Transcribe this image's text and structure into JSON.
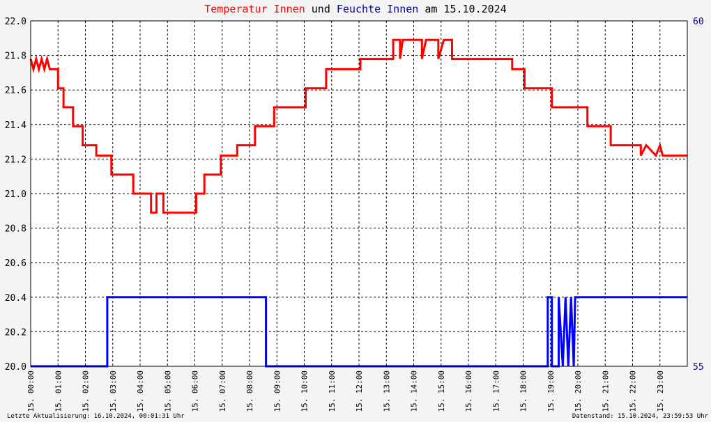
{
  "title": {
    "part1": "Temperatur Innen",
    "part2": " und ",
    "part3": "Feuchte Innen",
    "part4": " am 15.10.2024"
  },
  "footer": {
    "left": "Letzte Aktualisierung: 16.10.2024, 00:01:31 Uhr",
    "right": "Datenstand: 15.10.2024, 23:59:53 Uhr"
  },
  "colors": {
    "temperature": "#ff0000",
    "humidity": "#0000ff",
    "grid": "#000000",
    "plot_background": "#ffffff",
    "outer_background": "#f4f4f4",
    "right_axis_text": "#0000b0"
  },
  "chart_data": {
    "type": "line",
    "grid": true,
    "x_range_hours": [
      0,
      24
    ],
    "x_tick_labels": [
      "15. 00:00",
      "15. 01:00",
      "15. 02:00",
      "15. 03:00",
      "15. 04:00",
      "15. 05:00",
      "15. 06:00",
      "15. 07:00",
      "15. 08:00",
      "15. 09:00",
      "15. 10:00",
      "15. 11:00",
      "15. 12:00",
      "15. 13:00",
      "15. 14:00",
      "15. 15:00",
      "15. 16:00",
      "15. 17:00",
      "15. 18:00",
      "15. 19:00",
      "15. 20:00",
      "15. 21:00",
      "15. 22:00",
      "15. 23:00"
    ],
    "y_left": {
      "range": [
        20.0,
        22.0
      ],
      "ticks": [
        "20.0",
        "20.2",
        "20.4",
        "20.6",
        "20.8",
        "21.0",
        "21.2",
        "21.4",
        "21.6",
        "21.8",
        "22.0"
      ]
    },
    "y_right": {
      "range": [
        55,
        60
      ],
      "ticks": [
        "55",
        "60"
      ]
    },
    "series": [
      {
        "name": "Temperatur Innen",
        "axis": "left",
        "color": "#ff0000",
        "points": [
          [
            0.0,
            21.78
          ],
          [
            0.1,
            21.72
          ],
          [
            0.2,
            21.78
          ],
          [
            0.3,
            21.72
          ],
          [
            0.4,
            21.78
          ],
          [
            0.5,
            21.72
          ],
          [
            0.6,
            21.78
          ],
          [
            0.7,
            21.72
          ],
          [
            1.0,
            21.72
          ],
          [
            1.0,
            21.61
          ],
          [
            1.2,
            21.61
          ],
          [
            1.2,
            21.5
          ],
          [
            1.55,
            21.5
          ],
          [
            1.55,
            21.39
          ],
          [
            1.9,
            21.39
          ],
          [
            1.9,
            21.28
          ],
          [
            2.4,
            21.28
          ],
          [
            2.4,
            21.22
          ],
          [
            2.95,
            21.22
          ],
          [
            2.95,
            21.11
          ],
          [
            3.75,
            21.11
          ],
          [
            3.75,
            21.0
          ],
          [
            4.4,
            21.0
          ],
          [
            4.4,
            20.89
          ],
          [
            4.6,
            20.89
          ],
          [
            4.6,
            21.0
          ],
          [
            4.85,
            21.0
          ],
          [
            4.85,
            20.89
          ],
          [
            6.05,
            20.89
          ],
          [
            6.05,
            21.0
          ],
          [
            6.35,
            21.0
          ],
          [
            6.35,
            21.11
          ],
          [
            6.95,
            21.11
          ],
          [
            6.95,
            21.22
          ],
          [
            7.55,
            21.22
          ],
          [
            7.55,
            21.28
          ],
          [
            8.2,
            21.28
          ],
          [
            8.2,
            21.39
          ],
          [
            8.9,
            21.39
          ],
          [
            8.9,
            21.5
          ],
          [
            10.05,
            21.5
          ],
          [
            10.05,
            21.61
          ],
          [
            10.8,
            21.61
          ],
          [
            10.8,
            21.72
          ],
          [
            12.05,
            21.72
          ],
          [
            12.05,
            21.78
          ],
          [
            13.25,
            21.78
          ],
          [
            13.25,
            21.89
          ],
          [
            13.5,
            21.89
          ],
          [
            13.5,
            21.78
          ],
          [
            13.6,
            21.89
          ],
          [
            14.3,
            21.89
          ],
          [
            14.3,
            21.78
          ],
          [
            14.45,
            21.89
          ],
          [
            14.9,
            21.89
          ],
          [
            14.9,
            21.78
          ],
          [
            15.1,
            21.89
          ],
          [
            15.4,
            21.89
          ],
          [
            15.4,
            21.78
          ],
          [
            15.9,
            21.78
          ],
          [
            17.6,
            21.78
          ],
          [
            17.6,
            21.72
          ],
          [
            18.05,
            21.72
          ],
          [
            18.05,
            21.61
          ],
          [
            19.05,
            21.61
          ],
          [
            19.05,
            21.5
          ],
          [
            20.35,
            21.5
          ],
          [
            20.35,
            21.39
          ],
          [
            21.2,
            21.39
          ],
          [
            21.2,
            21.28
          ],
          [
            22.3,
            21.28
          ],
          [
            22.3,
            21.22
          ],
          [
            22.5,
            21.28
          ],
          [
            22.85,
            21.22
          ],
          [
            23.0,
            21.28
          ],
          [
            23.1,
            21.22
          ],
          [
            24.0,
            21.22
          ]
        ]
      },
      {
        "name": "Feuchte Innen",
        "axis": "right",
        "color": "#0000ff",
        "points": [
          [
            0.0,
            55.0
          ],
          [
            2.8,
            55.0
          ],
          [
            2.8,
            56.0
          ],
          [
            8.6,
            56.0
          ],
          [
            8.6,
            55.0
          ],
          [
            18.9,
            55.0
          ],
          [
            18.9,
            56.0
          ],
          [
            19.05,
            56.0
          ],
          [
            19.05,
            55.0
          ],
          [
            19.3,
            55.0
          ],
          [
            19.3,
            56.0
          ],
          [
            19.45,
            55.0
          ],
          [
            19.55,
            56.0
          ],
          [
            19.65,
            55.0
          ],
          [
            19.75,
            56.0
          ],
          [
            19.85,
            55.0
          ],
          [
            19.9,
            56.0
          ],
          [
            24.0,
            56.0
          ]
        ]
      }
    ]
  }
}
